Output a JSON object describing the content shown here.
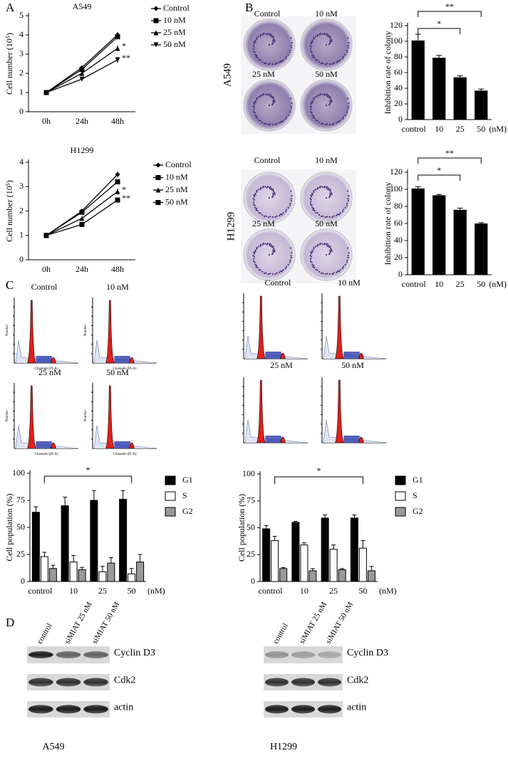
{
  "panel_labels": [
    "A",
    "B",
    "C",
    "D"
  ],
  "chart_data": [
    {
      "type": "line",
      "title": "A549",
      "y_label": "Cell number (10⁵)",
      "categories": [
        "0h",
        "24h",
        "48h"
      ],
      "ylim": [
        0,
        5
      ],
      "yticks": [
        0,
        1,
        2,
        3,
        4,
        5
      ],
      "annotations": [
        "*",
        "**"
      ],
      "series": [
        {
          "name": "Control",
          "color": "#000000",
          "marker": "diamond",
          "values": [
            1,
            2.3,
            4.0
          ],
          "errors": [
            0.03,
            0.1,
            0.15
          ]
        },
        {
          "name": "10 nM",
          "color": "#000000",
          "marker": "square",
          "values": [
            1,
            2.2,
            3.9
          ],
          "errors": [
            0.03,
            0.1,
            0.1
          ]
        },
        {
          "name": "25 nM",
          "color": "#000000",
          "marker": "triangle",
          "values": [
            1,
            2.0,
            3.3
          ],
          "errors": [
            0.03,
            0.08,
            0.15
          ]
        },
        {
          "name": "50 nM",
          "color": "#000000",
          "marker": "triangle-down",
          "values": [
            1,
            1.7,
            2.7
          ],
          "errors": [
            0.03,
            0.07,
            0.15
          ]
        }
      ]
    },
    {
      "type": "line",
      "title": "H1299",
      "y_label": "Cell number (10⁵)",
      "categories": [
        "0h",
        "24h",
        "48h"
      ],
      "ylim": [
        0,
        4
      ],
      "yticks": [
        0,
        1,
        2,
        3,
        4
      ],
      "annotations": [
        "*",
        "**"
      ],
      "series": [
        {
          "name": "Control",
          "color": "#000000",
          "marker": "diamond",
          "values": [
            1,
            2.0,
            3.5
          ],
          "errors": [
            0.03,
            0.06,
            0.12
          ]
        },
        {
          "name": "10 nM",
          "color": "#000000",
          "marker": "square",
          "values": [
            1,
            1.95,
            3.2
          ],
          "errors": [
            0.03,
            0.05,
            0.08
          ]
        },
        {
          "name": "25 nM",
          "color": "#000000",
          "marker": "triangle",
          "values": [
            1,
            1.7,
            2.8
          ],
          "errors": [
            0.03,
            0.05,
            0.12
          ]
        },
        {
          "name": "50 nM",
          "color": "#000000",
          "marker": "square",
          "values": [
            1,
            1.45,
            2.45
          ],
          "errors": [
            0.03,
            0.05,
            0.08
          ]
        }
      ]
    },
    {
      "type": "bar",
      "y_label": "Inhibition rate of colony",
      "x_label": "(nM)",
      "categories": [
        "control",
        "10",
        "25",
        "50"
      ],
      "values": [
        101,
        79,
        54,
        37
      ],
      "errors": [
        8,
        3,
        2,
        2
      ],
      "color": "#000000",
      "ylim": [
        0,
        120
      ],
      "yticks": [
        0,
        20,
        40,
        60,
        80,
        100,
        120
      ],
      "annotations": [
        "*",
        "**"
      ]
    },
    {
      "type": "bar",
      "y_label": "Inhibition rate of colony",
      "x_label": "(nM)",
      "categories": [
        "control",
        "10",
        "25",
        "50"
      ],
      "values": [
        101,
        93,
        76,
        60
      ],
      "errors": [
        2,
        1,
        2,
        1
      ],
      "color": "#000000",
      "ylim": [
        0,
        120
      ],
      "yticks": [
        0,
        20,
        40,
        60,
        80,
        100,
        120
      ],
      "annotations": [
        "*",
        "**"
      ]
    },
    {
      "type": "bar",
      "y_label": "Cell population (%)",
      "x_label": "(nM)",
      "categories": [
        "control",
        "10",
        "25",
        "50"
      ],
      "ylim": [
        0,
        100
      ],
      "yticks": [
        0,
        25,
        50,
        75,
        100
      ],
      "annotations": [
        "*"
      ],
      "series": [
        {
          "name": "G1",
          "color": "#000000",
          "values": [
            64,
            70,
            75,
            76
          ],
          "errors": [
            5,
            8,
            9,
            8
          ]
        },
        {
          "name": "S",
          "color": "#ffffff",
          "values": [
            23,
            18,
            9,
            7
          ],
          "errors": [
            4,
            6,
            5,
            5
          ]
        },
        {
          "name": "G2",
          "color": "#999999",
          "values": [
            12,
            11,
            17,
            18
          ],
          "errors": [
            3,
            2,
            5,
            7
          ]
        }
      ]
    },
    {
      "type": "bar",
      "y_label": "Cell population (%)",
      "x_label": "(nM)",
      "categories": [
        "control",
        "10",
        "25",
        "50"
      ],
      "ylim": [
        0,
        100
      ],
      "yticks": [
        0,
        25,
        50,
        75,
        100
      ],
      "annotations": [
        "*"
      ],
      "series": [
        {
          "name": "G1",
          "color": "#000000",
          "values": [
            49,
            55,
            59,
            59
          ],
          "errors": [
            3,
            1,
            3,
            3
          ]
        },
        {
          "name": "S",
          "color": "#ffffff",
          "values": [
            38,
            34,
            30,
            31
          ],
          "errors": [
            4,
            2,
            4,
            7
          ]
        },
        {
          "name": "G2",
          "color": "#999999",
          "values": [
            12,
            10,
            11,
            10
          ],
          "errors": [
            1,
            2,
            1,
            4
          ]
        }
      ]
    }
  ],
  "colony_assays": [
    {
      "cell_line": "A549",
      "plates": [
        "Control",
        "10 nM",
        "25 nM",
        "50 nM"
      ]
    },
    {
      "cell_line": "H1299",
      "plates": [
        "Control",
        "10 nM",
        "25 nM",
        "50 nM"
      ]
    }
  ],
  "flow_cytometry": [
    {
      "plates": [
        "Control",
        "10 nM",
        "25 nM",
        "50 nM"
      ],
      "y_label": "Number",
      "x_label": "Channels (PI-A)"
    },
    {
      "plates": [
        "Control",
        "10 nM",
        "25 nM",
        "50 nM"
      ]
    }
  ],
  "western_blots": [
    {
      "cell_line": "A549",
      "lanes": [
        "control",
        "siMIAT 25 nM",
        "siMIAT 50 nM"
      ],
      "proteins": [
        "Cyclin D3",
        "Cdk2",
        "actin"
      ]
    },
    {
      "cell_line": "H1299",
      "lanes": [
        "control",
        "siMIAT 25 nM",
        "siMIAT 50 nM"
      ],
      "proteins": [
        "Cyclin D3",
        "Cdk2",
        "actin"
      ]
    }
  ]
}
